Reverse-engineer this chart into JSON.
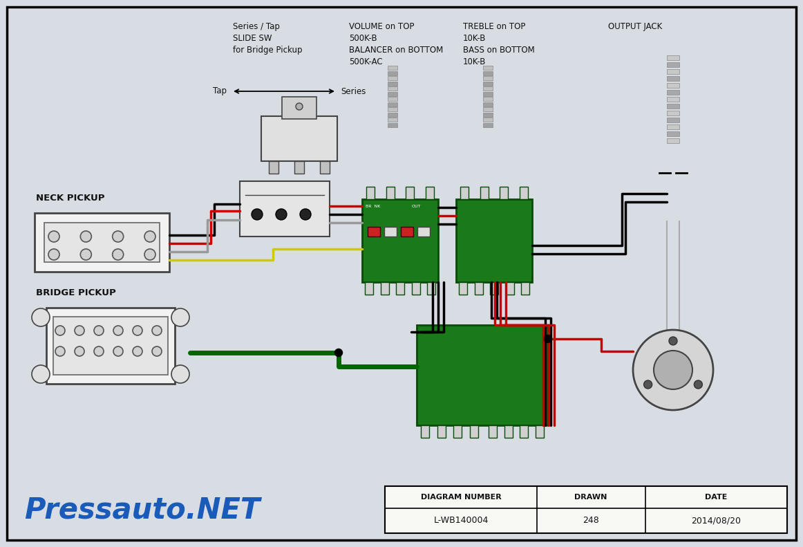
{
  "bg_color": "#d8dde4",
  "border_color": "#000000",
  "title_texts": {
    "series_tap": "Series / Tap\nSLIDE SW\nfor Bridge Pickup",
    "volume": "VOLUME on TOP\n500K-B\nBALANCER on BOTTOM\n500K-AC",
    "treble": "TREBLE on TOP\n10K-B\nBASS on BOTTOM\n10K-B",
    "output_jack": "OUTPUT JACK"
  },
  "tap_label": "Tap",
  "series_label": "Series",
  "neck_pickup_label": "NECK PICKUP",
  "bridge_pickup_label": "BRIDGE PICKUP",
  "pressauto_text": "Pressauto.NET",
  "pressauto_color": "#1a5ab8",
  "table_headers": [
    "DIAGRAM NUMBER",
    "DRAWN",
    "DATE"
  ],
  "table_values": [
    "L-WB140004",
    "248",
    "2014/08/20"
  ],
  "black": "#000000",
  "red": "#cc0000",
  "yellow": "#cccc00",
  "green": "#006600",
  "gray": "#999999",
  "white": "#ffffff",
  "light_gray": "#cccccc",
  "med_gray": "#aaaaaa",
  "dark_gray": "#555555",
  "pcb_green": "#1a7a1a",
  "pcb_dark": "#0a4a0a",
  "component_fill": "#e8e8e8",
  "component_stroke": "#444444"
}
